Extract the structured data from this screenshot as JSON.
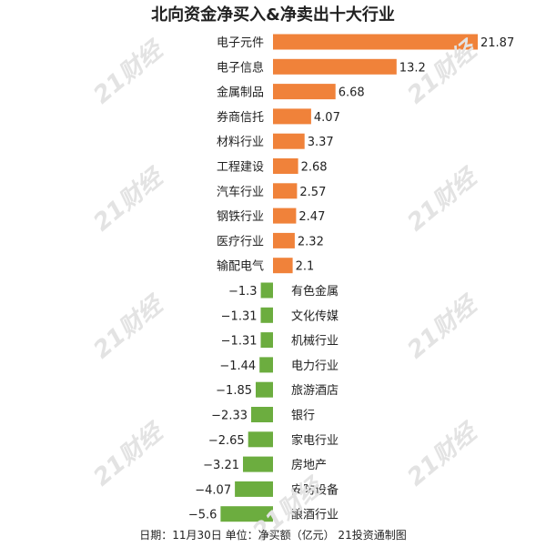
{
  "title": "北向资金净买入&净卖出十大行业",
  "footnote": "日期：11月30日 单位：净买额（亿元） 21投资通制图",
  "watermark_text": "21财经",
  "colors": {
    "positive": "#f0823a",
    "negative": "#6cad3f"
  },
  "chart_data": {
    "type": "bar",
    "orientation": "horizontal",
    "categories": [
      "电子元件",
      "电子信息",
      "金属制品",
      "券商信托",
      "材料行业",
      "工程建设",
      "汽车行业",
      "钢铁行业",
      "医疗行业",
      "输配电气",
      "有色金属",
      "文化传媒",
      "机械行业",
      "电力行业",
      "旅游酒店",
      "银行",
      "家电行业",
      "房地产",
      "安防设备",
      "酿酒行业"
    ],
    "values": [
      21.87,
      13.2,
      6.68,
      4.07,
      3.37,
      2.68,
      2.57,
      2.47,
      2.32,
      2.1,
      -1.3,
      -1.31,
      -1.31,
      -1.44,
      -1.85,
      -2.33,
      -2.65,
      -3.21,
      -4.07,
      -5.6
    ],
    "value_labels": [
      "21.87",
      "13.2",
      "6.68",
      "4.07",
      "3.37",
      "2.68",
      "2.57",
      "2.47",
      "2.32",
      "2.1",
      "−1.3",
      "−1.31",
      "−1.31",
      "−1.44",
      "−1.85",
      "−2.33",
      "−2.65",
      "−3.21",
      "−4.07",
      "−5.6"
    ],
    "unit": "亿元"
  }
}
